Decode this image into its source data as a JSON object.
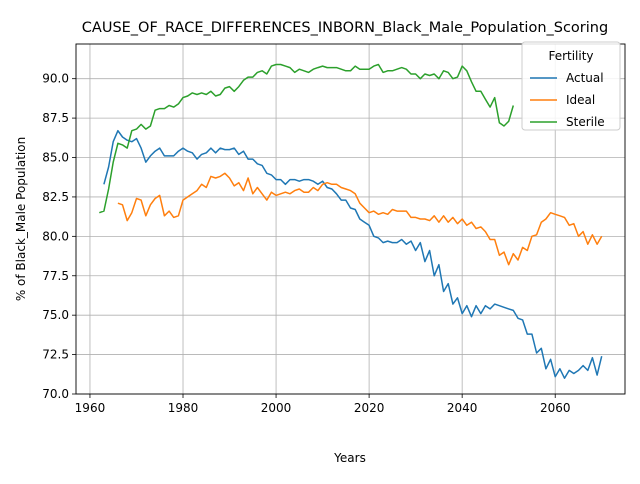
{
  "chart_data": {
    "type": "line",
    "title": "CAUSE_OF_RACE_DIFFERENCES_INBORN_Black_Male_Population_Scoring",
    "xlabel": "Years",
    "ylabel": "% of Black_Male Population",
    "xlim": [
      1957,
      2075
    ],
    "ylim": [
      70,
      92.2
    ],
    "xticks": [
      1960,
      1980,
      2000,
      2020,
      2040,
      2060
    ],
    "yticks": [
      70.0,
      72.5,
      75.0,
      77.5,
      80.0,
      82.5,
      85.0,
      87.5,
      90.0
    ],
    "grid": true,
    "legend": {
      "title": "Fertility",
      "placement": "top-right"
    },
    "series": [
      {
        "name": "Actual",
        "color": "#1f77b4",
        "x": [
          1963,
          1964,
          1965,
          1966,
          1967,
          1968,
          1969,
          1970,
          1971,
          1972,
          1973,
          1974,
          1975,
          1976,
          1977,
          1978,
          1979,
          1980,
          1981,
          1982,
          1983,
          1984,
          1985,
          1986,
          1987,
          1988,
          1989,
          1990,
          1991,
          1992,
          1993,
          1994,
          1995,
          1996,
          1997,
          1998,
          1999,
          2000,
          2001,
          2002,
          2003,
          2004,
          2005,
          2006,
          2007,
          2008,
          2009,
          2010,
          2011,
          2012,
          2013,
          2014,
          2015,
          2016,
          2017,
          2018,
          2019,
          2020,
          2021,
          2022,
          2023,
          2024,
          2025,
          2026,
          2027,
          2028,
          2029,
          2030,
          2031,
          2032,
          2033,
          2034,
          2035,
          2036,
          2037,
          2038,
          2039,
          2040,
          2041,
          2042,
          2043,
          2044,
          2045,
          2046,
          2047,
          2048,
          2049,
          2050,
          2051,
          2052,
          2053,
          2054,
          2055,
          2056,
          2057,
          2058,
          2059,
          2060,
          2061,
          2062,
          2063,
          2064,
          2065,
          2066,
          2067,
          2068,
          2069,
          2070
        ],
        "values": [
          83.3,
          84.4,
          86.0,
          86.7,
          86.3,
          86.1,
          86.0,
          86.2,
          85.6,
          84.7,
          85.1,
          85.4,
          85.6,
          85.1,
          85.1,
          85.1,
          85.4,
          85.6,
          85.4,
          85.3,
          84.9,
          85.2,
          85.3,
          85.6,
          85.3,
          85.6,
          85.5,
          85.5,
          85.6,
          85.2,
          85.4,
          84.9,
          84.9,
          84.6,
          84.5,
          84.0,
          83.9,
          83.6,
          83.6,
          83.3,
          83.6,
          83.6,
          83.5,
          83.6,
          83.6,
          83.5,
          83.3,
          83.5,
          83.1,
          83.0,
          82.7,
          82.3,
          82.3,
          81.8,
          81.7,
          81.1,
          80.9,
          80.7,
          80.0,
          79.9,
          79.6,
          79.7,
          79.6,
          79.6,
          79.8,
          79.5,
          79.7,
          79.1,
          79.6,
          78.4,
          79.1,
          77.5,
          78.2,
          76.5,
          77.0,
          75.7,
          76.1,
          75.1,
          75.6,
          74.9,
          75.6,
          75.1,
          75.6,
          75.4,
          75.7,
          75.6,
          75.5,
          75.4,
          75.3,
          74.8,
          74.7,
          73.8,
          73.8,
          72.6,
          72.9,
          71.6,
          72.2,
          71.1,
          71.6,
          71.0,
          71.5,
          71.3,
          71.5,
          71.8,
          71.5,
          72.3,
          71.2,
          72.4
        ]
      },
      {
        "name": "Ideal",
        "color": "#ff7f0e",
        "x": [
          1966,
          1967,
          1968,
          1969,
          1970,
          1971,
          1972,
          1973,
          1974,
          1975,
          1976,
          1977,
          1978,
          1979,
          1980,
          1981,
          1982,
          1983,
          1984,
          1985,
          1986,
          1987,
          1988,
          1989,
          1990,
          1991,
          1992,
          1993,
          1994,
          1995,
          1996,
          1997,
          1998,
          1999,
          2000,
          2001,
          2002,
          2003,
          2004,
          2005,
          2006,
          2007,
          2008,
          2009,
          2010,
          2011,
          2012,
          2013,
          2014,
          2015,
          2016,
          2017,
          2018,
          2019,
          2020,
          2021,
          2022,
          2023,
          2024,
          2025,
          2026,
          2027,
          2028,
          2029,
          2030,
          2031,
          2032,
          2033,
          2034,
          2035,
          2036,
          2037,
          2038,
          2039,
          2040,
          2041,
          2042,
          2043,
          2044,
          2045,
          2046,
          2047,
          2048,
          2049,
          2050,
          2051,
          2052,
          2053,
          2054,
          2055,
          2056,
          2057,
          2058,
          2059,
          2060,
          2061,
          2062,
          2063,
          2064,
          2065,
          2066,
          2067,
          2068,
          2069,
          2070
        ],
        "values": [
          82.1,
          82.0,
          81.0,
          81.5,
          82.4,
          82.3,
          81.3,
          82.0,
          82.4,
          82.6,
          81.3,
          81.6,
          81.2,
          81.3,
          82.3,
          82.5,
          82.7,
          82.9,
          83.3,
          83.1,
          83.8,
          83.7,
          83.8,
          84.0,
          83.7,
          83.2,
          83.4,
          82.9,
          83.7,
          82.7,
          83.1,
          82.7,
          82.3,
          82.8,
          82.6,
          82.7,
          82.8,
          82.7,
          82.9,
          83.0,
          82.8,
          82.8,
          83.1,
          82.9,
          83.3,
          83.4,
          83.3,
          83.3,
          83.1,
          83.0,
          82.9,
          82.7,
          82.1,
          81.8,
          81.5,
          81.6,
          81.4,
          81.5,
          81.4,
          81.7,
          81.6,
          81.6,
          81.6,
          81.2,
          81.2,
          81.1,
          81.1,
          81.0,
          81.3,
          80.9,
          81.3,
          80.9,
          81.2,
          80.8,
          81.1,
          80.7,
          80.9,
          80.5,
          80.6,
          80.3,
          79.8,
          79.8,
          78.8,
          79.0,
          78.2,
          78.9,
          78.5,
          79.3,
          79.1,
          80.0,
          80.1,
          80.9,
          81.1,
          81.5,
          81.4,
          81.3,
          81.2,
          80.7,
          80.8,
          80.0,
          80.3,
          79.5,
          80.1,
          79.5,
          80.0
        ]
      },
      {
        "name": "Sterile",
        "color": "#2ca02c",
        "x": [
          1962,
          1963,
          1964,
          1965,
          1966,
          1967,
          1968,
          1969,
          1970,
          1971,
          1972,
          1973,
          1974,
          1975,
          1976,
          1977,
          1978,
          1979,
          1980,
          1981,
          1982,
          1983,
          1984,
          1985,
          1986,
          1987,
          1988,
          1989,
          1990,
          1991,
          1992,
          1993,
          1994,
          1995,
          1996,
          1997,
          1998,
          1999,
          2000,
          2001,
          2002,
          2003,
          2004,
          2005,
          2006,
          2007,
          2008,
          2009,
          2010,
          2011,
          2012,
          2013,
          2014,
          2015,
          2016,
          2017,
          2018,
          2019,
          2020,
          2021,
          2022,
          2023,
          2024,
          2025,
          2026,
          2027,
          2028,
          2029,
          2030,
          2031,
          2032,
          2033,
          2034,
          2035,
          2036,
          2037,
          2038,
          2039,
          2040,
          2041,
          2042,
          2043,
          2044,
          2045,
          2046,
          2047,
          2048,
          2049,
          2050,
          2051
        ],
        "values": [
          81.5,
          81.6,
          83.0,
          84.7,
          85.9,
          85.8,
          85.6,
          86.7,
          86.8,
          87.1,
          86.8,
          87.0,
          88.0,
          88.1,
          88.1,
          88.3,
          88.2,
          88.4,
          88.8,
          88.9,
          89.1,
          89.0,
          89.1,
          89.0,
          89.2,
          88.9,
          89.0,
          89.4,
          89.5,
          89.2,
          89.5,
          89.9,
          90.1,
          90.1,
          90.4,
          90.5,
          90.3,
          90.8,
          90.9,
          90.9,
          90.8,
          90.7,
          90.4,
          90.6,
          90.5,
          90.4,
          90.6,
          90.7,
          90.8,
          90.7,
          90.7,
          90.7,
          90.6,
          90.5,
          90.5,
          90.8,
          90.6,
          90.6,
          90.6,
          90.8,
          90.9,
          90.4,
          90.5,
          90.5,
          90.6,
          90.7,
          90.6,
          90.3,
          90.3,
          90.0,
          90.3,
          90.2,
          90.3,
          90.0,
          90.5,
          90.4,
          90.0,
          90.1,
          90.8,
          90.5,
          89.8,
          89.2,
          89.2,
          88.7,
          88.2,
          88.8,
          87.2,
          87.0,
          87.3,
          88.3
        ]
      }
    ]
  }
}
